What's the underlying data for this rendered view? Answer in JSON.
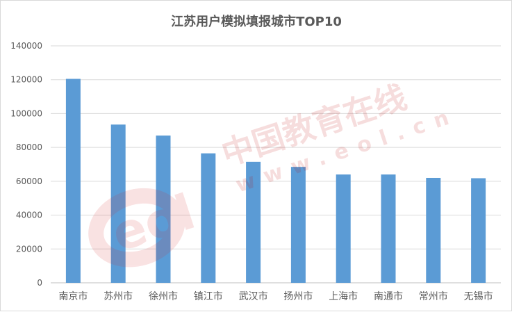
{
  "chart_data": {
    "type": "bar",
    "title": "江苏用户模拟填报城市TOP10",
    "categories": [
      "南京市",
      "苏州市",
      "徐州市",
      "镇江市",
      "武汉市",
      "扬州市",
      "上海市",
      "南通市",
      "常州市",
      "无锡市"
    ],
    "values": [
      120500,
      93500,
      87000,
      76500,
      71500,
      68500,
      64000,
      64000,
      62000,
      61800
    ],
    "ylim": [
      0,
      140000
    ],
    "yticks": [
      0,
      20000,
      40000,
      60000,
      80000,
      100000,
      120000,
      140000
    ],
    "xlabel": "",
    "ylabel": "",
    "grid": true,
    "bar_color": "#5b9bd5"
  },
  "watermark": {
    "logo": "eol",
    "brand": "中国教育在线",
    "url": "www.eol.cn"
  }
}
